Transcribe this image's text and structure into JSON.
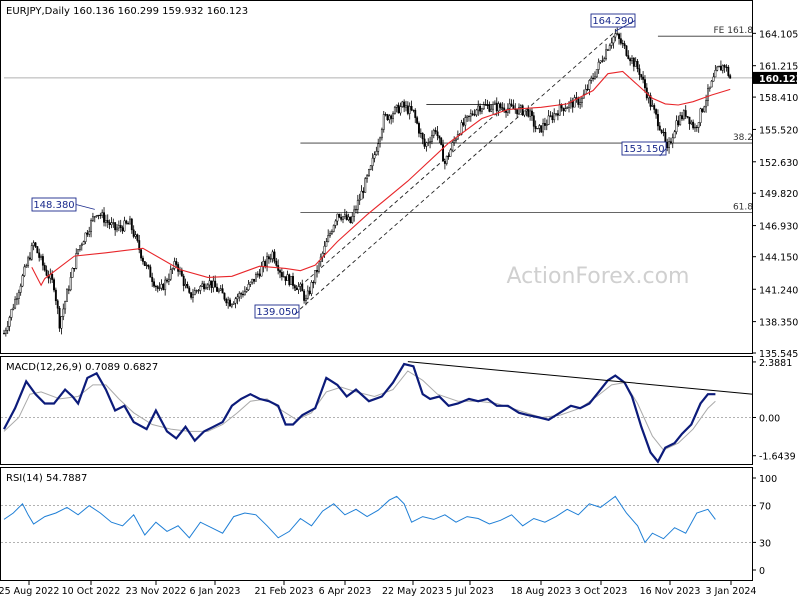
{
  "chart_data": {
    "type": "candlestick",
    "header": "EURJPY,Daily  160.136 160.299 159.932 160.123",
    "watermark": "ActionForex.com",
    "date_labels": [
      "25 Aug 2022",
      "10 Oct 2022",
      "23 Nov 2022",
      "6 Jan 2023",
      "21 Feb 2023",
      "6 Apr 2023",
      "22 May 2023",
      "5 Jul 2023",
      "18 Aug 2023",
      "3 Oct 2023",
      "16 Nov 2023",
      "3 Jan 2024"
    ],
    "price": {
      "ylim": [
        135.545,
        166.995
      ],
      "ticks": [
        "164.105",
        "161.215",
        "158.410",
        "155.520",
        "152.630",
        "149.820",
        "146.930",
        "144.150",
        "141.240",
        "138.350",
        "135.545"
      ],
      "last_price": "160.123",
      "last_price_value": 160.123,
      "ma_color": "#e8262a",
      "wave_points": [
        [
          0,
          137.3
        ],
        [
          10,
          142.3
        ],
        [
          16,
          145.3
        ],
        [
          22,
          143.0
        ],
        [
          27,
          141.6
        ],
        [
          30,
          138.2
        ],
        [
          40,
          144.8
        ],
        [
          50,
          148.2
        ],
        [
          60,
          146.6
        ],
        [
          68,
          147.1
        ],
        [
          76,
          143.5
        ],
        [
          84,
          141.0
        ],
        [
          93,
          143.6
        ],
        [
          100,
          140.6
        ],
        [
          110,
          142.0
        ],
        [
          122,
          140.1
        ],
        [
          131,
          141.2
        ],
        [
          145,
          144.5
        ],
        [
          150,
          142.6
        ],
        [
          160,
          141.3
        ],
        [
          163,
          140.2
        ],
        [
          172,
          144.4
        ],
        [
          180,
          148.1
        ],
        [
          187,
          147.2
        ],
        [
          198,
          152.0
        ],
        [
          205,
          156.5
        ],
        [
          215,
          157.6
        ],
        [
          221,
          157.0
        ],
        [
          227,
          154.0
        ],
        [
          233,
          155.6
        ],
        [
          238,
          152.5
        ],
        [
          245,
          155.3
        ],
        [
          256,
          157.6
        ],
        [
          270,
          157.5
        ],
        [
          283,
          157.1
        ],
        [
          288,
          155.3
        ],
        [
          300,
          157.4
        ],
        [
          312,
          158.2
        ],
        [
          318,
          160.2
        ],
        [
          327,
          163.3
        ],
        [
          330,
          164.0
        ],
        [
          338,
          162.0
        ],
        [
          343,
          160.7
        ],
        [
          349,
          157.8
        ],
        [
          355,
          155.5
        ],
        [
          358,
          153.5
        ],
        [
          363,
          156.2
        ],
        [
          368,
          157.0
        ],
        [
          373,
          155.6
        ],
        [
          379,
          158.3
        ],
        [
          385,
          160.8
        ],
        [
          389,
          161.3
        ],
        [
          392,
          160.1
        ]
      ],
      "ma_points": [
        [
          15,
          143.2
        ],
        [
          20,
          141.6
        ],
        [
          22,
          142.2
        ],
        [
          38,
          144.2
        ],
        [
          55,
          144.5
        ],
        [
          75,
          144.9
        ],
        [
          95,
          143.0
        ],
        [
          110,
          142.3
        ],
        [
          123,
          142.4
        ],
        [
          138,
          143.3
        ],
        [
          152,
          143.1
        ],
        [
          160,
          142.9
        ],
        [
          168,
          143.4
        ],
        [
          180,
          145.5
        ],
        [
          196,
          147.9
        ],
        [
          218,
          150.9
        ],
        [
          240,
          154.3
        ],
        [
          258,
          156.5
        ],
        [
          272,
          157.3
        ],
        [
          290,
          157.5
        ],
        [
          304,
          157.8
        ],
        [
          318,
          159.0
        ],
        [
          326,
          160.5
        ],
        [
          334,
          160.7
        ],
        [
          342,
          159.5
        ],
        [
          350,
          158.3
        ],
        [
          357,
          157.8
        ],
        [
          364,
          157.7
        ],
        [
          372,
          158.0
        ],
        [
          382,
          158.6
        ],
        [
          392,
          159.1
        ]
      ],
      "annotations": [
        {
          "text": "148.380",
          "value": 148.38,
          "bar": 49
        },
        {
          "text": "139.050",
          "value": 139.05,
          "bar": 157
        },
        {
          "text": "164.290",
          "value": 164.29,
          "bar": 330
        },
        {
          "text": "153.150",
          "value": 153.15,
          "bar": 354
        }
      ],
      "levels": [
        {
          "label": "FE 161.8",
          "value": 163.85,
          "from_bar": 353,
          "to_bar": 400
        },
        {
          "label": "38.2",
          "value": 154.3,
          "from_bar": 160,
          "to_bar": 400
        },
        {
          "label": "61.8",
          "value": 148.1,
          "from_bar": 160,
          "to_bar": 400
        },
        {
          "label": "",
          "value": 160.123,
          "from_bar": 0,
          "to_bar": 400
        }
      ],
      "trend_line": [
        [
          157,
          139.05
        ],
        [
          330,
          164.29
        ]
      ],
      "channel_line": [
        [
          157,
          141.1
        ],
        [
          269,
          157.4
        ]
      ],
      "top_line": [
        [
          228,
          157.75
        ],
        [
          264,
          157.75
        ]
      ]
    },
    "macd": {
      "label": "MACD(12,26,9) 0.7089 0.6827",
      "ylim": [
        -2.0,
        2.6
      ],
      "ticks": [
        "2.3881",
        "0.00",
        "-1.6439"
      ],
      "tick_values": [
        2.3881,
        0.0,
        -1.6439
      ],
      "main_color": "#0c1b7a",
      "signal_color": "#aaaaaa",
      "main_points": [
        [
          0,
          -0.5
        ],
        [
          6,
          0.4
        ],
        [
          12,
          1.55
        ],
        [
          17,
          1.0
        ],
        [
          22,
          0.6
        ],
        [
          27,
          0.6
        ],
        [
          33,
          1.2
        ],
        [
          37,
          0.9
        ],
        [
          40,
          0.6
        ],
        [
          45,
          1.7
        ],
        [
          50,
          1.9
        ],
        [
          55,
          1.2
        ],
        [
          60,
          0.3
        ],
        [
          65,
          0.5
        ],
        [
          70,
          -0.2
        ],
        [
          77,
          -0.5
        ],
        [
          82,
          0.3
        ],
        [
          88,
          -0.6
        ],
        [
          93,
          -0.9
        ],
        [
          98,
          -0.4
        ],
        [
          103,
          -1.0
        ],
        [
          108,
          -0.6
        ],
        [
          113,
          -0.4
        ],
        [
          118,
          -0.2
        ],
        [
          123,
          0.5
        ],
        [
          128,
          0.8
        ],
        [
          133,
          1.0
        ],
        [
          138,
          0.8
        ],
        [
          143,
          0.7
        ],
        [
          148,
          0.5
        ],
        [
          152,
          -0.3
        ],
        [
          156,
          -0.3
        ],
        [
          161,
          0.1
        ],
        [
          168,
          0.4
        ],
        [
          174,
          1.7
        ],
        [
          180,
          1.4
        ],
        [
          185,
          0.9
        ],
        [
          190,
          1.2
        ],
        [
          197,
          0.7
        ],
        [
          204,
          0.9
        ],
        [
          210,
          1.5
        ],
        [
          216,
          2.3
        ],
        [
          221,
          2.2
        ],
        [
          226,
          1.0
        ],
        [
          230,
          0.8
        ],
        [
          235,
          0.9
        ],
        [
          240,
          0.5
        ],
        [
          245,
          0.6
        ],
        [
          251,
          0.8
        ],
        [
          256,
          0.7
        ],
        [
          261,
          0.8
        ],
        [
          266,
          0.5
        ],
        [
          272,
          0.5
        ],
        [
          278,
          0.2
        ],
        [
          283,
          0.1
        ],
        [
          289,
          0.0
        ],
        [
          294,
          -0.1
        ],
        [
          300,
          0.2
        ],
        [
          306,
          0.5
        ],
        [
          311,
          0.4
        ],
        [
          316,
          0.6
        ],
        [
          321,
          1.1
        ],
        [
          326,
          1.6
        ],
        [
          330,
          1.8
        ],
        [
          335,
          1.5
        ],
        [
          339,
          0.9
        ],
        [
          344,
          -0.4
        ],
        [
          349,
          -1.5
        ],
        [
          353,
          -1.9
        ],
        [
          357,
          -1.3
        ],
        [
          362,
          -1.1
        ],
        [
          366,
          -0.7
        ],
        [
          371,
          -0.3
        ],
        [
          376,
          0.6
        ],
        [
          380,
          1.0
        ],
        [
          384,
          1.0
        ]
      ],
      "signal_points": [
        [
          0,
          -0.6
        ],
        [
          8,
          0.0
        ],
        [
          14,
          1.0
        ],
        [
          20,
          1.1
        ],
        [
          30,
          0.8
        ],
        [
          40,
          0.9
        ],
        [
          48,
          1.4
        ],
        [
          55,
          1.4
        ],
        [
          62,
          0.8
        ],
        [
          70,
          0.2
        ],
        [
          80,
          -0.3
        ],
        [
          90,
          -0.5
        ],
        [
          100,
          -0.6
        ],
        [
          110,
          -0.6
        ],
        [
          118,
          -0.3
        ],
        [
          126,
          0.2
        ],
        [
          133,
          0.7
        ],
        [
          142,
          0.8
        ],
        [
          150,
          0.3
        ],
        [
          158,
          -0.1
        ],
        [
          166,
          0.2
        ],
        [
          174,
          1.1
        ],
        [
          182,
          1.3
        ],
        [
          190,
          1.1
        ],
        [
          200,
          0.9
        ],
        [
          210,
          1.2
        ],
        [
          218,
          2.0
        ],
        [
          226,
          1.6
        ],
        [
          234,
          1.0
        ],
        [
          245,
          0.7
        ],
        [
          256,
          0.7
        ],
        [
          266,
          0.6
        ],
        [
          278,
          0.3
        ],
        [
          290,
          0.0
        ],
        [
          300,
          0.1
        ],
        [
          311,
          0.4
        ],
        [
          320,
          0.9
        ],
        [
          328,
          1.4
        ],
        [
          335,
          1.5
        ],
        [
          342,
          0.6
        ],
        [
          350,
          -0.8
        ],
        [
          356,
          -1.4
        ],
        [
          364,
          -1.1
        ],
        [
          372,
          -0.5
        ],
        [
          380,
          0.4
        ],
        [
          384,
          0.7
        ]
      ],
      "trend_line": [
        [
          218,
          2.4
        ],
        [
          400,
          1.0
        ]
      ]
    },
    "rsi": {
      "label": "RSI(14) 54.7887",
      "ylim": [
        0,
        100
      ],
      "ticks": [
        "100",
        "70",
        "30",
        "0"
      ],
      "tick_values": [
        100,
        70,
        30,
        0
      ],
      "line_color": "#1f7fd6",
      "levels": [
        70,
        30
      ],
      "points": [
        [
          0,
          55
        ],
        [
          5,
          62
        ],
        [
          10,
          72
        ],
        [
          13,
          60
        ],
        [
          16,
          50
        ],
        [
          22,
          58
        ],
        [
          28,
          62
        ],
        [
          34,
          68
        ],
        [
          40,
          60
        ],
        [
          46,
          70
        ],
        [
          52,
          62
        ],
        [
          58,
          52
        ],
        [
          64,
          48
        ],
        [
          70,
          60
        ],
        [
          76,
          38
        ],
        [
          82,
          52
        ],
        [
          88,
          42
        ],
        [
          94,
          48
        ],
        [
          100,
          35
        ],
        [
          106,
          52
        ],
        [
          112,
          46
        ],
        [
          118,
          40
        ],
        [
          124,
          58
        ],
        [
          130,
          62
        ],
        [
          136,
          60
        ],
        [
          142,
          48
        ],
        [
          148,
          35
        ],
        [
          154,
          42
        ],
        [
          160,
          56
        ],
        [
          166,
          48
        ],
        [
          172,
          64
        ],
        [
          178,
          72
        ],
        [
          184,
          60
        ],
        [
          190,
          66
        ],
        [
          196,
          58
        ],
        [
          202,
          65
        ],
        [
          208,
          76
        ],
        [
          212,
          80
        ],
        [
          216,
          72
        ],
        [
          220,
          52
        ],
        [
          226,
          58
        ],
        [
          232,
          55
        ],
        [
          238,
          60
        ],
        [
          244,
          52
        ],
        [
          250,
          58
        ],
        [
          256,
          56
        ],
        [
          262,
          50
        ],
        [
          268,
          54
        ],
        [
          274,
          60
        ],
        [
          280,
          48
        ],
        [
          286,
          56
        ],
        [
          292,
          52
        ],
        [
          298,
          58
        ],
        [
          304,
          66
        ],
        [
          310,
          60
        ],
        [
          316,
          72
        ],
        [
          322,
          68
        ],
        [
          326,
          74
        ],
        [
          330,
          80
        ],
        [
          336,
          62
        ],
        [
          342,
          48
        ],
        [
          346,
          30
        ],
        [
          350,
          40
        ],
        [
          356,
          34
        ],
        [
          362,
          46
        ],
        [
          368,
          40
        ],
        [
          374,
          62
        ],
        [
          380,
          66
        ],
        [
          384,
          55
        ]
      ]
    }
  }
}
